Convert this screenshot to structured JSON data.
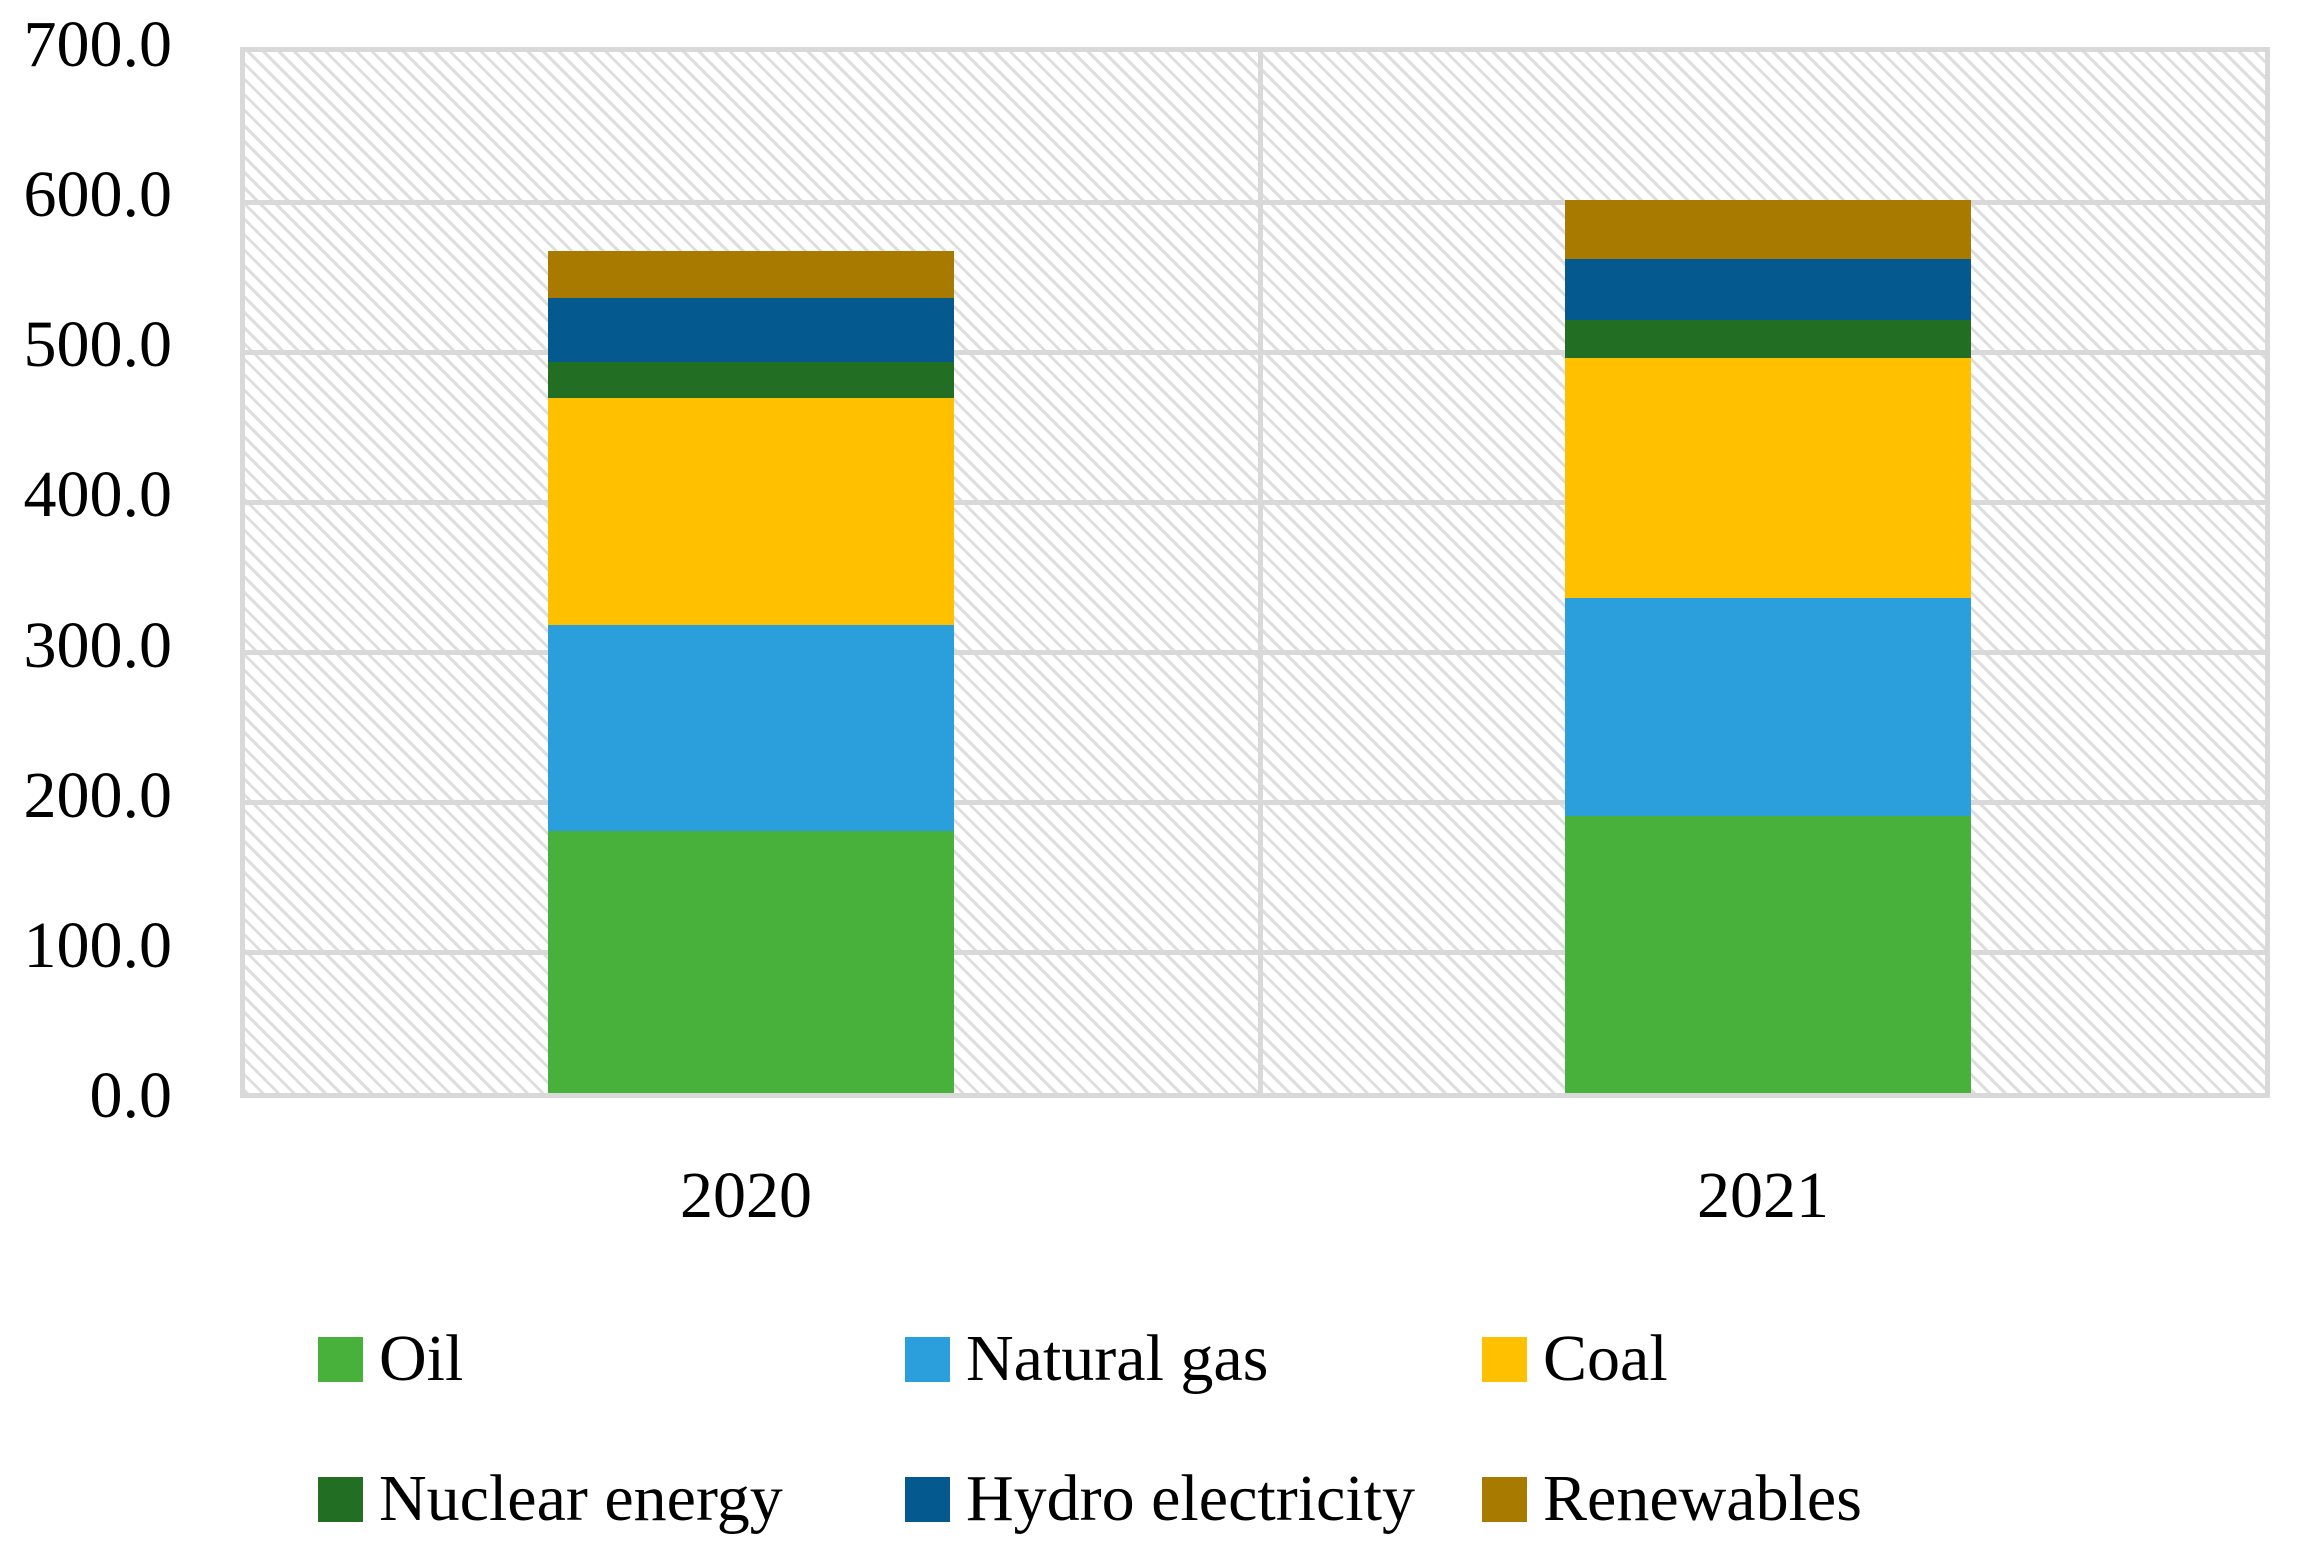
{
  "chart_data": {
    "type": "bar",
    "stacked": true,
    "title": "",
    "xlabel": "",
    "ylabel": "",
    "categories": [
      "2020",
      "2021"
    ],
    "series": [
      {
        "name": "Oil",
        "color": "#47B13C",
        "values": [
          174.2,
          184.2
        ]
      },
      {
        "name": "Natural gas",
        "color": "#2A9FDB",
        "values": [
          137.6,
          145.3
        ]
      },
      {
        "name": "Coal",
        "color": "#FFC000",
        "values": [
          151.4,
          160.1
        ]
      },
      {
        "name": "Nuclear energy",
        "color": "#226E23",
        "values": [
          23.9,
          25.3
        ]
      },
      {
        "name": "Hydro electricity",
        "color": "#04598F",
        "values": [
          42.3,
          40.3
        ]
      },
      {
        "name": "Renewables",
        "color": "#A87B00",
        "values": [
          31.7,
          39.9
        ]
      }
    ],
    "totals": [
      561.2,
      595.1
    ],
    "ylim": [
      0,
      700
    ],
    "ytick_step": 100,
    "ytick_labels": [
      "0.0",
      "100.0",
      "200.0",
      "300.0",
      "400.0",
      "500.0",
      "600.0",
      "700.0"
    ],
    "grid": true,
    "legend_position": "bottom",
    "plot_background": "light-diagonal-hatch"
  },
  "style_tokens": {
    "gridline_color": "#d9d9d9",
    "hatch_line_color": "#dedede",
    "text_color": "#000000",
    "background_color": "#ffffff"
  },
  "layout_labels": {
    "legend_rows": [
      [
        "Oil",
        "Natural gas",
        "Coal"
      ],
      [
        "Nuclear energy",
        "Hydro electricity",
        "Renewables"
      ]
    ]
  }
}
